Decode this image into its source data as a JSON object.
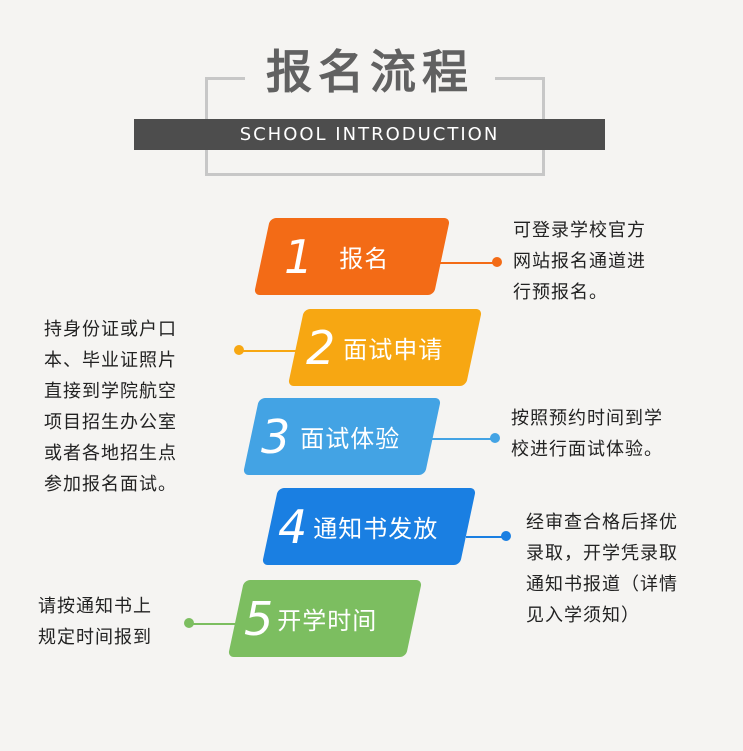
{
  "header": {
    "title": "报名流程",
    "subtitle": "SCHOOL INTRODUCTION"
  },
  "steps": [
    {
      "number": "1",
      "label": "报名",
      "color": "#f36b16"
    },
    {
      "number": "2",
      "label": "面试申请",
      "color": "#f7a712"
    },
    {
      "number": "3",
      "label": "面试体验",
      "color": "#43a3e4"
    },
    {
      "number": "4",
      "label": "通知书发放",
      "color": "#1a7fe2"
    },
    {
      "number": "5",
      "label": "开学时间",
      "color": "#7cbe60"
    }
  ],
  "notes": {
    "step1": "可登录学校官方\n网站报名通道进\n行预报名。",
    "step2": "持身份证或户口\n本、毕业证照片\n直接到学院航空\n项目招生办公室\n或者各地招生点\n参加报名面试。",
    "step3": "按照预约时间到学\n校进行面试体验。",
    "step4": "经审查合格后择优\n录取，开学凭录取\n通知书报道（详情\n见入学须知）",
    "step5": "请按通知书上\n规定时间报到"
  }
}
